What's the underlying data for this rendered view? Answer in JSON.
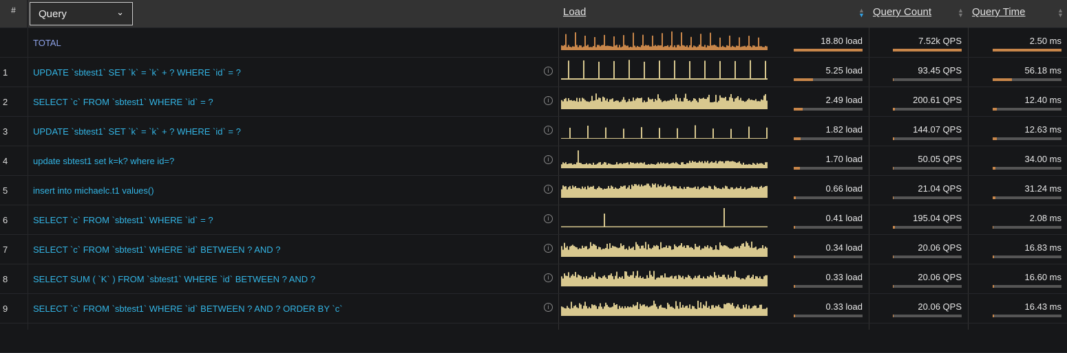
{
  "header": {
    "hash": "#",
    "query_select": "Query",
    "load": "Load",
    "query_count": "Query Count",
    "query_time": "Query Time",
    "chevron_icon": "chevron-down-icon",
    "sort_icon": "sort-icon"
  },
  "colors": {
    "total_spark": "#c8864a",
    "spark": "#d8c88f",
    "bar_fill": "#c8864a",
    "query_text": "#33b5e5",
    "total_text": "#8ea2e8"
  },
  "rows": [
    {
      "num": "",
      "query": "TOTAL",
      "spark": "spiky-dense",
      "load": "18.80 load",
      "load_pct": 100,
      "qc": "7.52k QPS",
      "qc_pct": 100,
      "qt": "2.50 ms",
      "qt_pct": 100
    },
    {
      "num": "1",
      "query": "UPDATE `sbtest1` SET `k` = `k` + ? WHERE `id` = ?",
      "spark": "spiky",
      "load": "5.25 load",
      "load_pct": 28,
      "qc": "93.45 QPS",
      "qc_pct": 1,
      "qt": "56.18 ms",
      "qt_pct": 28
    },
    {
      "num": "2",
      "query": "SELECT `c` FROM `sbtest1` WHERE `id` = ?",
      "spark": "noisy",
      "load": "2.49 load",
      "load_pct": 13,
      "qc": "200.61 QPS",
      "qc_pct": 3,
      "qt": "12.40 ms",
      "qt_pct": 6
    },
    {
      "num": "3",
      "query": "UPDATE `sbtest1` SET `k` = `k` + ? WHERE `id` = ?",
      "spark": "spiky-thin",
      "load": "1.82 load",
      "load_pct": 10,
      "qc": "144.07 QPS",
      "qc_pct": 2,
      "qt": "12.63 ms",
      "qt_pct": 6
    },
    {
      "num": "4",
      "query": "update sbtest1 set k=k? where id=?",
      "spark": "low-noisy",
      "load": "1.70 load",
      "load_pct": 9,
      "qc": "50.05 QPS",
      "qc_pct": 1,
      "qt": "34.00 ms",
      "qt_pct": 4
    },
    {
      "num": "5",
      "query": "insert into michaelc.t1 values()",
      "spark": "mid-noisy",
      "load": "0.66 load",
      "load_pct": 3,
      "qc": "21.04 QPS",
      "qc_pct": 1,
      "qt": "31.24 ms",
      "qt_pct": 4
    },
    {
      "num": "6",
      "query": "SELECT `c` FROM `sbtest1` WHERE `id` = ?",
      "spark": "flat-spike",
      "load": "0.41 load",
      "load_pct": 2,
      "qc": "195.04 QPS",
      "qc_pct": 3,
      "qt": "2.08 ms",
      "qt_pct": 1
    },
    {
      "num": "7",
      "query": "SELECT `c` FROM `sbtest1` WHERE `id` BETWEEN ? AND ?",
      "spark": "noisy",
      "load": "0.34 load",
      "load_pct": 2,
      "qc": "20.06 QPS",
      "qc_pct": 1,
      "qt": "16.83 ms",
      "qt_pct": 2
    },
    {
      "num": "8",
      "query": "SELECT SUM ( `K` ) FROM `sbtest1` WHERE `id` BETWEEN ? AND ?",
      "spark": "noisy",
      "load": "0.33 load",
      "load_pct": 2,
      "qc": "20.06 QPS",
      "qc_pct": 1,
      "qt": "16.60 ms",
      "qt_pct": 2
    },
    {
      "num": "9",
      "query": "SELECT `c` FROM `sbtest1` WHERE `id` BETWEEN ? AND ? ORDER BY `c`",
      "spark": "noisy",
      "load": "0.33 load",
      "load_pct": 2,
      "qc": "20.06 QPS",
      "qc_pct": 1,
      "qt": "16.43 ms",
      "qt_pct": 2
    }
  ]
}
